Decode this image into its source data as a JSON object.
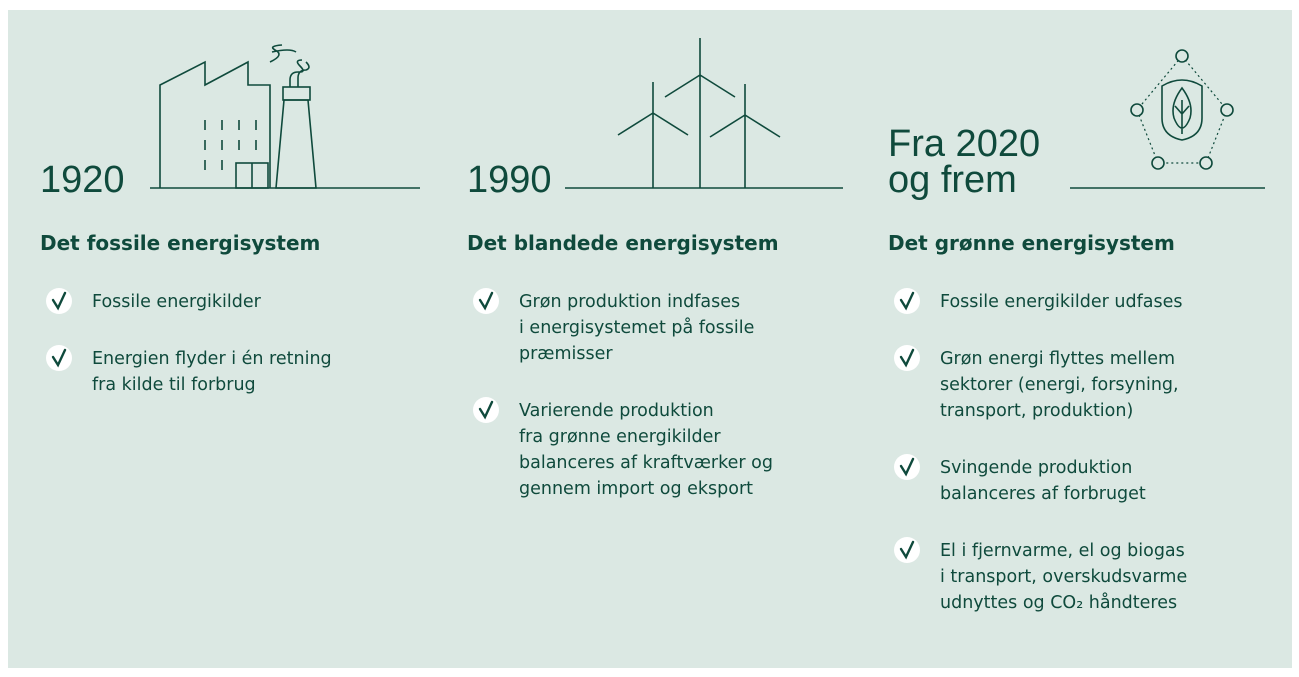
{
  "columns": [
    {
      "era": [
        "1920"
      ],
      "heading": "Det fossile energisystem",
      "items": [
        [
          "Fossile energikilder"
        ],
        [
          "Energien flyder i én retning",
          "fra kilde til forbrug"
        ]
      ]
    },
    {
      "era": [
        "1990"
      ],
      "heading": "Det blandede energisystem",
      "items": [
        [
          "Grøn produktion indfases",
          "i energisystemet på fossile",
          "præmisser"
        ],
        [
          "Varierende produktion",
          "fra grønne energikilder",
          "balanceres af kraftværker og",
          "gennem import og eksport"
        ]
      ]
    },
    {
      "era": [
        "Fra 2020",
        "og frem"
      ],
      "heading": "Det grønne energisystem",
      "items": [
        [
          "Fossile energikilder udfases"
        ],
        [
          "Grøn energi flyttes mellem",
          "sektorer (energi, forsyning,",
          "transport, produktion)"
        ],
        [
          "Svingende produktion",
          "balanceres af forbruget"
        ],
        [
          "El i fjernvarme, el og biogas",
          "i transport, overskudsvarme",
          "udnyttes og CO₂ håndteres"
        ]
      ]
    }
  ]
}
